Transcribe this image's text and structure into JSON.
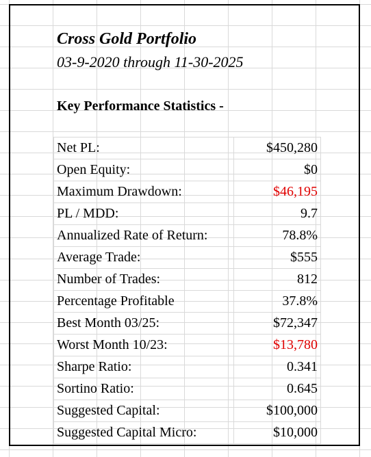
{
  "header": {
    "title": "Cross Gold Portfolio",
    "date_range": "03-9-2020 through 11-30-2025",
    "section": "Key Performance Statistics -"
  },
  "stats": [
    {
      "label": "Net PL:",
      "value": "$450,280",
      "negative": false
    },
    {
      "label": "Open Equity:",
      "value": "$0",
      "negative": false
    },
    {
      "label": "Maximum  Drawdown:",
      "value": "$46,195",
      "negative": true
    },
    {
      "label": "PL / MDD:",
      "value": "9.7",
      "negative": false
    },
    {
      "label": "Annualized Rate of Return:",
      "value": "78.8%",
      "negative": false
    },
    {
      "label": "Average Trade:",
      "value": "$555",
      "negative": false
    },
    {
      "label": "Number of Trades:",
      "value": "812",
      "negative": false
    },
    {
      "label": "Percentage Profitable",
      "value": "37.8%",
      "negative": false
    },
    {
      "label": "Best Month 03/25:",
      "value": "$72,347",
      "negative": false
    },
    {
      "label": "Worst Month 10/23:",
      "value": "$13,780",
      "negative": true
    },
    {
      "label": "Sharpe Ratio:",
      "value": "0.341",
      "negative": false
    },
    {
      "label": "Sortino Ratio:",
      "value": "0.645",
      "negative": false
    },
    {
      "label": "Suggested Capital:",
      "value": "$100,000",
      "negative": false
    },
    {
      "label": "Suggested Capital Micro:",
      "value": "$10,000",
      "negative": false
    }
  ],
  "colors": {
    "negative": "#e00000",
    "text": "#000000",
    "gridline": "#d9d9d9"
  }
}
